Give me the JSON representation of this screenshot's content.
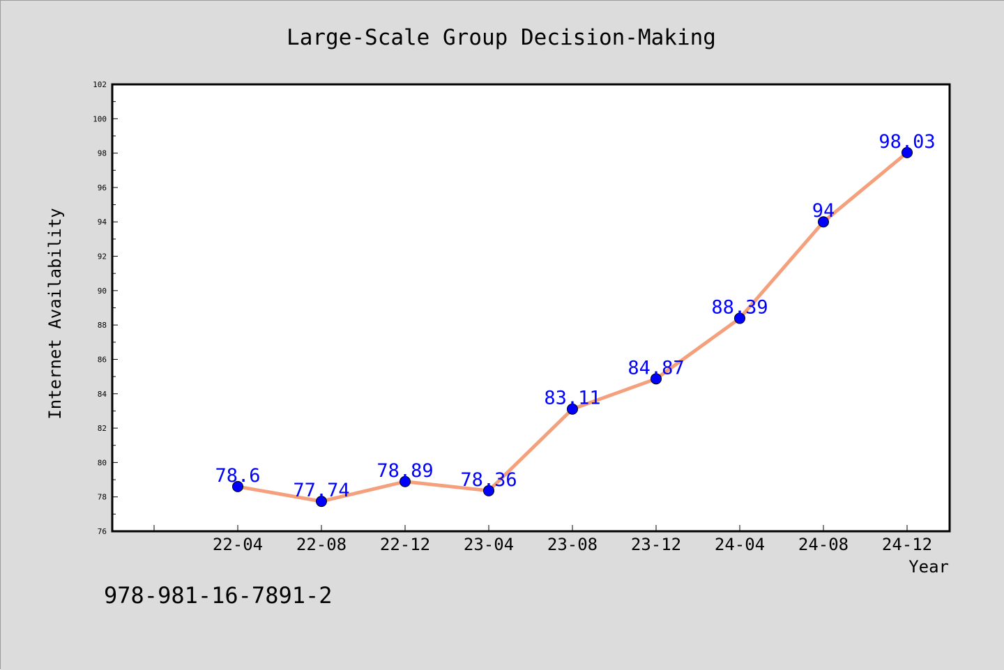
{
  "colors": {
    "background": "#dcdcdc",
    "plot_area": "#ffffff",
    "line": "#f4a07c",
    "marker": "#0000ff",
    "data_label": "#0000ff",
    "axis": "#000000",
    "text": "#000000"
  },
  "footer_text": "978-981-16-7891-2",
  "chart_data": {
    "type": "line",
    "title": "Large-Scale Group Decision-Making",
    "xlabel": "Year",
    "ylabel": "Internet Availability",
    "categories": [
      "22-04",
      "22-08",
      "22-12",
      "23-04",
      "23-08",
      "23-12",
      "24-04",
      "24-08",
      "24-12"
    ],
    "series": [
      {
        "values": [
          78.6,
          77.74,
          78.89,
          78.36,
          83.11,
          84.87,
          88.39,
          94,
          98.03
        ],
        "labels": [
          "78.6",
          "77.74",
          "78.89",
          "78.36",
          "83.11",
          "84.87",
          "88.39",
          "94",
          "98.03"
        ]
      }
    ],
    "ylim": [
      76,
      102
    ],
    "y_ticks": [
      76,
      78,
      80,
      82,
      84,
      86,
      88,
      90,
      92,
      94,
      96,
      98,
      100,
      102
    ],
    "grid": false,
    "legend": "none"
  }
}
